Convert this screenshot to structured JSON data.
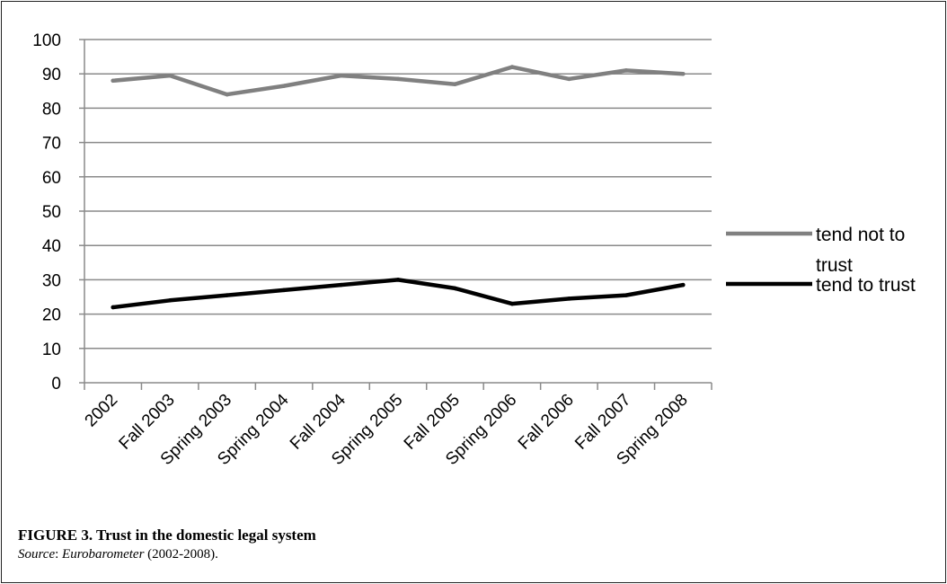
{
  "chart_data": {
    "type": "line",
    "categories": [
      "2002",
      "Fall 2003",
      "Spring 2003",
      "Spring 2004",
      "Fall 2004",
      "Spring 2005",
      "Fall 2005",
      "Spring 2006",
      "Fall 2006",
      "Fall 2007",
      "Spring 2008"
    ],
    "series": [
      {
        "name": "tend not to trust",
        "color": "#808080",
        "values": [
          88,
          89.5,
          84,
          86.5,
          89.5,
          88.5,
          87,
          92,
          88.5,
          91,
          90
        ]
      },
      {
        "name": "tend to trust",
        "color": "#000000",
        "values": [
          22,
          24,
          25.5,
          27,
          28.5,
          30,
          27.5,
          23,
          24.5,
          25.5,
          28.5
        ]
      }
    ],
    "ylim": [
      0,
      100
    ],
    "yticks": [
      0,
      10,
      20,
      30,
      40,
      50,
      60,
      70,
      80,
      90,
      100
    ],
    "grid": "horizontal",
    "legend": "right",
    "legend_labels": [
      [
        "tend not to",
        "trust"
      ],
      [
        "tend to trust"
      ]
    ]
  },
  "caption": {
    "title": "FIGURE 3. Trust in the domestic legal system",
    "source_label": "Source",
    "source_colon": ": ",
    "source_name": "Eurobarometer",
    "source_years": " (2002-2008)."
  }
}
